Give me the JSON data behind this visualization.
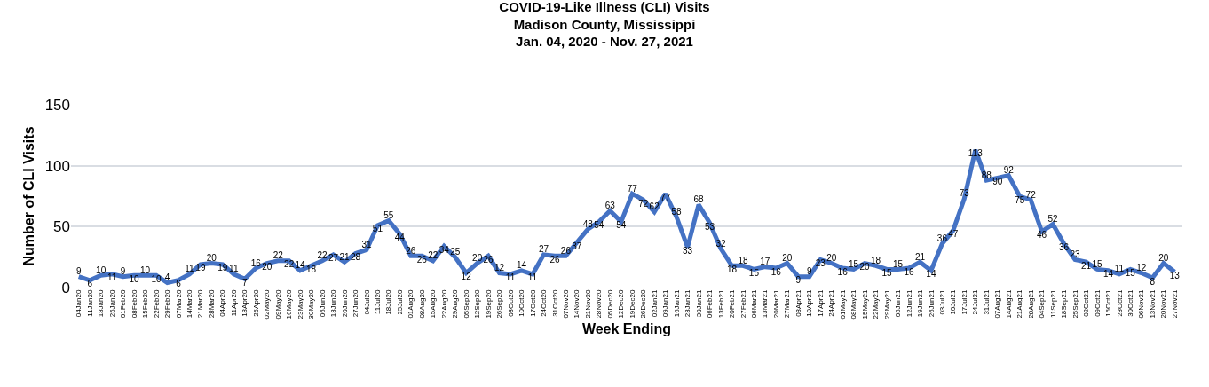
{
  "chart_data": {
    "type": "line",
    "title": "COVID-19-Like Illness (CLI) Visits\nMadison County, Mississippi\nJan. 04, 2020 - Nov. 27, 2021",
    "xlabel": "Week Ending",
    "ylabel": "Number of CLI Visits",
    "categories": [
      "04Jan20",
      "11Jan20",
      "18Jan20",
      "25Jan20",
      "01Feb20",
      "08Feb20",
      "15Feb20",
      "22Feb20",
      "29Feb20",
      "07Mar20",
      "14Mar20",
      "21Mar20",
      "28Mar20",
      "04Apr20",
      "11Apr20",
      "18Apr20",
      "25Apr20",
      "02May20",
      "09May20",
      "16May20",
      "23May20",
      "30May20",
      "06Jun20",
      "13Jun20",
      "20Jun20",
      "27Jun20",
      "04Jul20",
      "11Jul20",
      "18Jul20",
      "25Jul20",
      "01Aug20",
      "08Aug20",
      "15Aug20",
      "22Aug20",
      "29Aug20",
      "05Sep20",
      "12Sep20",
      "19Sep20",
      "26Sep20",
      "03Oct20",
      "10Oct20",
      "17Oct20",
      "24Oct20",
      "31Oct20",
      "07Nov20",
      "14Nov20",
      "21Nov20",
      "28Nov20",
      "05Dec20",
      "12Dec20",
      "19Dec20",
      "26Dec20",
      "02Jan21",
      "09Jan21",
      "16Jan21",
      "23Jan21",
      "30Jan21",
      "06Feb21",
      "13Feb21",
      "20Feb21",
      "27Feb21",
      "06Mar21",
      "13Mar21",
      "20Mar21",
      "27Mar21",
      "03Apr21",
      "10Apr21",
      "17Apr21",
      "24Apr21",
      "01May21",
      "08May21",
      "15May21",
      "22May21",
      "29May21",
      "05Jun21",
      "12Jun21",
      "19Jun21",
      "26Jun21",
      "03Jul21",
      "10Jul21",
      "17Jul21",
      "24Jul21",
      "31Jul21",
      "07Aug21",
      "14Aug21",
      "21Aug21",
      "28Aug21",
      "04Sep21",
      "11Sep21",
      "18Sep21",
      "25Sep21",
      "02Oct21",
      "09Oct21",
      "16Oct21",
      "23Oct21",
      "30Oct21",
      "06Nov21",
      "13Nov21",
      "20Nov21",
      "27Nov21"
    ],
    "series": [
      {
        "color": "#4472c4",
        "values": [
          9,
          6,
          10,
          11,
          9,
          10,
          10,
          10,
          4,
          6,
          11,
          19,
          20,
          19,
          11,
          7,
          16,
          20,
          22,
          22,
          14,
          18,
          22,
          27,
          21,
          28,
          31,
          51,
          55,
          44,
          26,
          26,
          22,
          34,
          25,
          12,
          20,
          26,
          12,
          11,
          14,
          11,
          27,
          26,
          26,
          37,
          48,
          54,
          63,
          54,
          77,
          72,
          62,
          77,
          58,
          33,
          68,
          53,
          32,
          18,
          18,
          15,
          17,
          16,
          20,
          9,
          9,
          23,
          20,
          16,
          15,
          20,
          18,
          15,
          15,
          16,
          21,
          14,
          36,
          47,
          73,
          113,
          88,
          90,
          92,
          75,
          72,
          46,
          52,
          36,
          23,
          21,
          15,
          14,
          11,
          15,
          12,
          8,
          20,
          13
        ]
      }
    ],
    "ylim": [
      0,
      150
    ],
    "yticks": [
      0,
      50,
      100,
      150
    ],
    "grid": "y",
    "data_labels": true,
    "marker": "none",
    "line_style": "solid"
  }
}
